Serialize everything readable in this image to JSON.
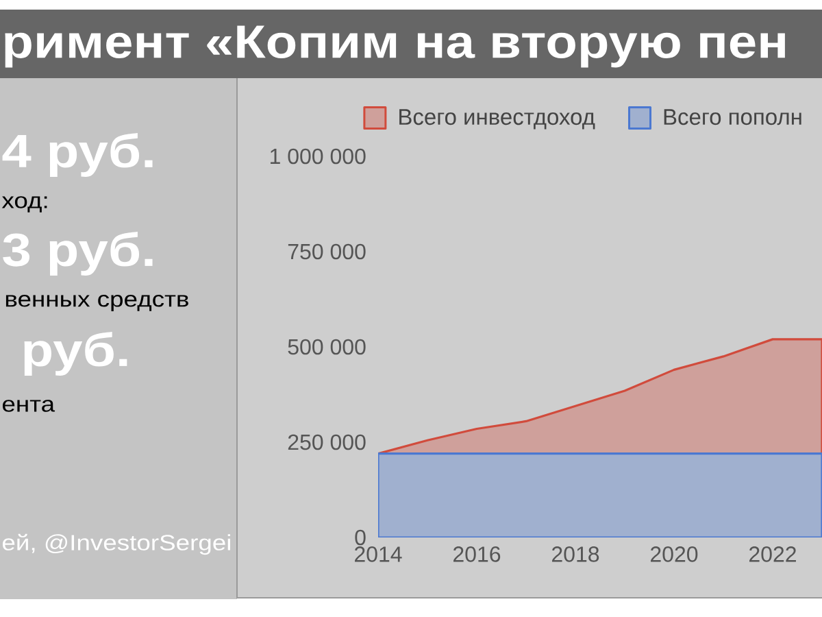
{
  "chart_data": {
    "type": "area",
    "stacked": true,
    "title": "римент «Копим на вторую пен",
    "x": [
      2014,
      2015,
      2016,
      2017,
      2018,
      2019,
      2020,
      2021,
      2022,
      2023
    ],
    "series": [
      {
        "name": "Всего пополн",
        "color": "#a0b0cf",
        "values": [
          220000,
          220000,
          220000,
          220000,
          220000,
          220000,
          220000,
          220000,
          220000,
          220000
        ]
      },
      {
        "name": "Всего инвестдоход",
        "color": "#cfa09b",
        "values": [
          0,
          35000,
          65000,
          85000,
          125000,
          165000,
          220000,
          255000,
          300000,
          300000
        ]
      }
    ],
    "xlim": [
      2014,
      2023
    ],
    "xticks": [
      2014,
      2016,
      2018,
      2020,
      2022
    ],
    "ylim": [
      0,
      1000000
    ],
    "yticks": [
      0,
      {
        "value": 250000,
        "label": "250 000"
      },
      {
        "value": 500000,
        "label": "500 000"
      },
      {
        "value": 750000,
        "label": "750 000"
      },
      {
        "value": 1000000,
        "label": "1 000 000"
      }
    ],
    "legend": "top",
    "annotations": [
      "4 руб.",
      "ход:",
      "3 руб.",
      "венных средств",
      "руб.",
      "ента",
      "ей, @InvestorSergei"
    ]
  }
}
